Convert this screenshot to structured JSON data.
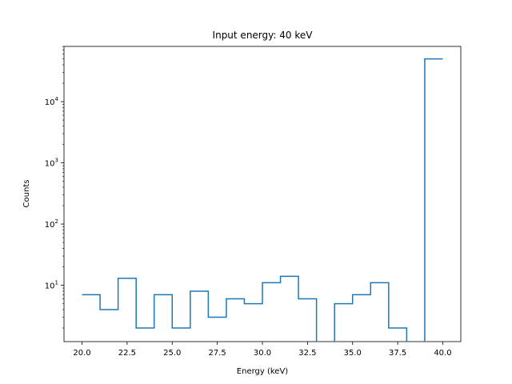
{
  "chart_data": {
    "type": "histogram",
    "title": "Input energy:  40 keV",
    "xlabel": "Energy (keV)",
    "ylabel": "Counts",
    "yscale": "log",
    "xlim": [
      19.0,
      41.0
    ],
    "ylim": [
      1.2,
      80000
    ],
    "x_ticks": [
      20.0,
      22.5,
      25.0,
      27.5,
      30.0,
      32.5,
      35.0,
      37.5,
      40.0
    ],
    "x_tick_labels": [
      "20.0",
      "22.5",
      "25.0",
      "27.5",
      "30.0",
      "32.5",
      "35.0",
      "37.5",
      "40.0"
    ],
    "y_major_ticks": [
      {
        "base": "10",
        "exp": "1",
        "value": 10
      },
      {
        "base": "10",
        "exp": "2",
        "value": 100
      },
      {
        "base": "10",
        "exp": "3",
        "value": 1000
      },
      {
        "base": "10",
        "exp": "4",
        "value": 10000
      }
    ],
    "bin_edges": [
      20,
      21,
      22,
      23,
      24,
      25,
      26,
      27,
      28,
      29,
      30,
      31,
      32,
      33,
      34,
      35,
      36,
      37,
      38,
      39,
      40
    ],
    "counts": [
      7,
      4,
      13,
      2,
      7,
      2,
      8,
      3,
      6,
      5,
      11,
      14,
      6,
      0,
      5,
      7,
      11,
      2,
      0,
      50000
    ],
    "line_color": "#1f77b4",
    "grid": false
  }
}
